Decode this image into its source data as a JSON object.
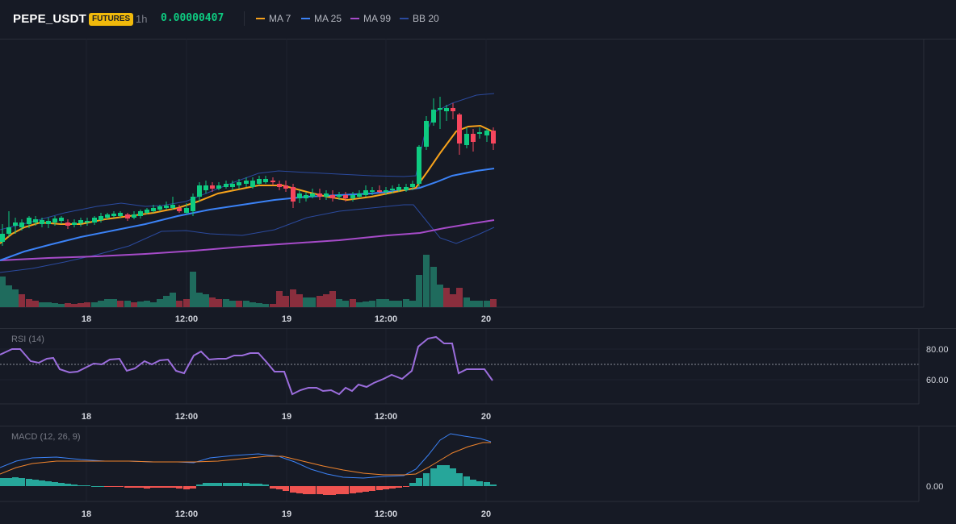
{
  "header": {
    "symbol": "PEPE_USDT",
    "market_badge": "FUTURES",
    "interval": "1h",
    "last_price": "0.00000407",
    "legend": [
      {
        "label": "MA 7",
        "color": "#f7a21b"
      },
      {
        "label": "MA 25",
        "color": "#3b82f6"
      },
      {
        "label": "MA 99",
        "color": "#a64bc9"
      },
      {
        "label": "BB 20",
        "color": "#2b4a9e"
      }
    ]
  },
  "panes": {
    "rsi": {
      "label": "RSI (14)",
      "levels": [
        "80.00",
        "60.00"
      ]
    },
    "macd": {
      "label": "MACD (12, 26, 9)",
      "levels": [
        "0.00"
      ]
    }
  },
  "time_axis": [
    "18",
    "12:00",
    "19",
    "12:00",
    "20"
  ],
  "colors": {
    "up": "#0ecb81",
    "down": "#f6465d",
    "background": "#161a25",
    "grid": "#1e2230"
  },
  "chart_data": [
    {
      "type": "candlestick",
      "x": [
        "18",
        "12:00",
        "19",
        "12:00",
        "20"
      ],
      "note_series": [
        "MA 7",
        "MA 25",
        "MA 99",
        "BB 20"
      ]
    },
    {
      "type": "line",
      "series": [
        {
          "name": "RSI (14)"
        }
      ],
      "ticks": [
        "80.00",
        "60.00"
      ]
    },
    {
      "type": "bar",
      "series": [
        {
          "name": "MACD (12, 26, 9)"
        }
      ],
      "ticks": [
        "0.00"
      ]
    }
  ]
}
